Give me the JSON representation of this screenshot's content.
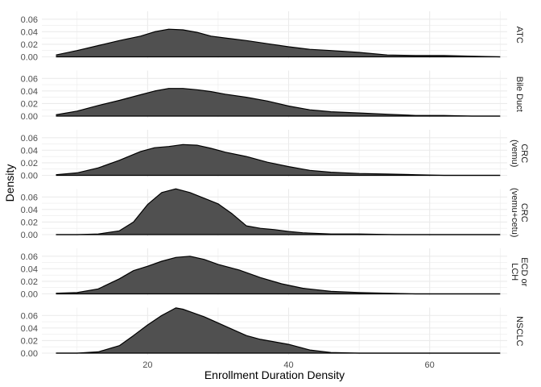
{
  "chart_data": {
    "type": "area",
    "subtype": "density-faceted",
    "xlabel": "Enrollment Duration Density",
    "ylabel": "Density",
    "xlim": [
      5,
      71
    ],
    "ylim": [
      0,
      0.07
    ],
    "x_ticks": [
      20,
      40,
      60
    ],
    "y_ticks": [
      0.0,
      0.02,
      0.04,
      0.06
    ],
    "y_tick_labels": [
      "0.00",
      "0.02",
      "0.04",
      "0.06"
    ],
    "grid": true,
    "facet_layout": "rows",
    "strip_position": "right",
    "fill_color": "#4d4d4d",
    "fill_opacity": 0.98,
    "line_color": "#000000",
    "grid_color": "#ebebeb",
    "panels": [
      {
        "label": "ATC",
        "label_lines": [
          "ATC"
        ],
        "x": [
          7,
          10,
          13,
          16,
          19,
          21,
          23,
          25,
          27,
          29,
          31,
          34,
          37,
          40,
          43,
          46,
          50,
          54,
          58,
          62,
          66,
          70
        ],
        "y": [
          0.003,
          0.01,
          0.018,
          0.026,
          0.033,
          0.04,
          0.044,
          0.043,
          0.039,
          0.033,
          0.03,
          0.026,
          0.021,
          0.016,
          0.012,
          0.01,
          0.007,
          0.003,
          0.002,
          0.002,
          0.001,
          0.0
        ]
      },
      {
        "label": "Bile Duct",
        "label_lines": [
          "Bile Duct"
        ],
        "x": [
          7,
          10,
          13,
          16,
          19,
          21,
          23,
          25,
          27,
          29,
          31,
          34,
          37,
          40,
          43,
          46,
          50,
          54,
          58,
          62,
          66,
          70
        ],
        "y": [
          0.002,
          0.008,
          0.017,
          0.025,
          0.034,
          0.04,
          0.044,
          0.044,
          0.042,
          0.039,
          0.035,
          0.03,
          0.024,
          0.016,
          0.01,
          0.007,
          0.005,
          0.003,
          0.001,
          0.001,
          0.0,
          0.0
        ]
      },
      {
        "label": "CRC\n(vemu)",
        "label_lines": [
          "CRC",
          "(vemu)"
        ],
        "x": [
          7,
          10,
          13,
          16,
          19,
          21,
          23,
          25,
          27,
          29,
          31,
          34,
          37,
          40,
          43,
          46,
          50,
          54,
          58,
          62,
          66,
          70
        ],
        "y": [
          0.001,
          0.004,
          0.012,
          0.024,
          0.038,
          0.044,
          0.046,
          0.049,
          0.048,
          0.043,
          0.037,
          0.03,
          0.021,
          0.014,
          0.008,
          0.005,
          0.003,
          0.002,
          0.001,
          0.0,
          0.0,
          0.0
        ]
      },
      {
        "label": "CRC\n(vemu+cetu)",
        "label_lines": [
          "CRC",
          "(vemu+cetu)"
        ],
        "x": [
          7,
          10,
          13,
          16,
          18,
          20,
          22,
          24,
          26,
          28,
          30,
          32,
          34,
          36,
          38,
          40,
          42,
          46,
          50,
          55,
          60,
          70
        ],
        "y": [
          0.0,
          0.0,
          0.001,
          0.006,
          0.02,
          0.048,
          0.067,
          0.073,
          0.067,
          0.058,
          0.049,
          0.033,
          0.014,
          0.01,
          0.008,
          0.005,
          0.003,
          0.001,
          0.001,
          0.0,
          0.0,
          0.0
        ]
      },
      {
        "label": "ECD or\nLCH",
        "label_lines": [
          "ECD or",
          "LCH"
        ],
        "x": [
          7,
          10,
          13,
          16,
          18,
          20,
          22,
          24,
          26,
          28,
          30,
          33,
          36,
          39,
          42,
          46,
          50,
          54,
          58,
          62,
          66,
          70
        ],
        "y": [
          0.001,
          0.002,
          0.008,
          0.024,
          0.037,
          0.044,
          0.052,
          0.058,
          0.06,
          0.055,
          0.047,
          0.038,
          0.026,
          0.016,
          0.009,
          0.004,
          0.002,
          0.001,
          0.0,
          0.0,
          0.0,
          0.0
        ]
      },
      {
        "label": "NSCLC",
        "label_lines": [
          "NSCLC"
        ],
        "x": [
          7,
          10,
          13,
          16,
          18,
          20,
          22,
          23,
          24,
          25,
          26,
          28,
          30,
          32,
          34,
          36,
          38,
          40,
          43,
          46,
          50,
          70
        ],
        "y": [
          0.0,
          0.0,
          0.002,
          0.012,
          0.028,
          0.045,
          0.06,
          0.066,
          0.072,
          0.07,
          0.066,
          0.058,
          0.048,
          0.038,
          0.028,
          0.022,
          0.018,
          0.014,
          0.005,
          0.001,
          0.0,
          0.0
        ]
      }
    ]
  }
}
